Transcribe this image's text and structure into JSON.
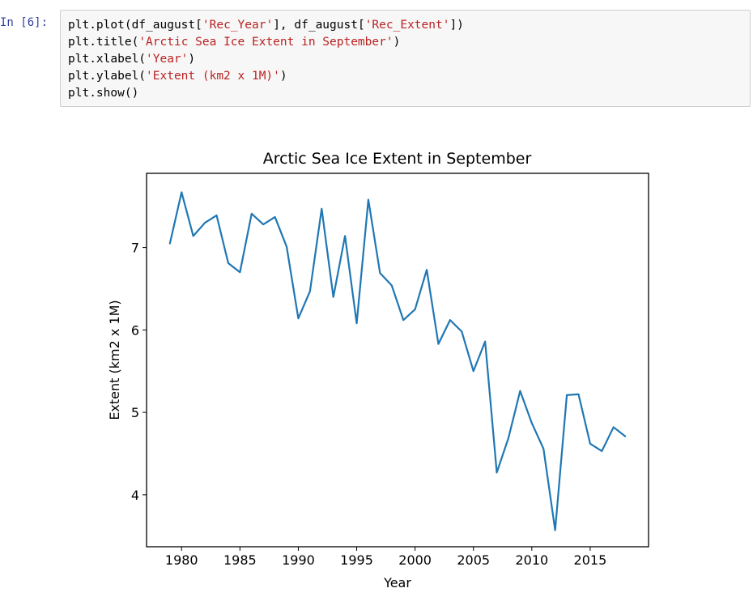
{
  "cell": {
    "prompt": "In [6]:",
    "lines": [
      [
        {
          "t": "plt.plot(df_august["
        },
        {
          "t": "'Rec_Year'",
          "s": 1
        },
        {
          "t": "], df_august["
        },
        {
          "t": "'Rec_Extent'",
          "s": 1
        },
        {
          "t": "])"
        }
      ],
      [
        {
          "t": "plt.title("
        },
        {
          "t": "'Arctic Sea Ice Extent in September'",
          "s": 1
        },
        {
          "t": ")"
        }
      ],
      [
        {
          "t": "plt.xlabel("
        },
        {
          "t": "'Year'",
          "s": 1
        },
        {
          "t": ")"
        }
      ],
      [
        {
          "t": "plt.ylabel("
        },
        {
          "t": "'Extent (km2 x 1M)'",
          "s": 1
        },
        {
          "t": ")"
        }
      ],
      [
        {
          "t": "plt.show()"
        }
      ]
    ]
  },
  "colors": {
    "line": "#1f77b4",
    "string": "#ba2121",
    "prompt": "#303f9f"
  },
  "chart_data": {
    "type": "line",
    "title": "Arctic Sea Ice Extent in September",
    "xlabel": "Year",
    "ylabel": "Extent (km2 x 1M)",
    "xlim": [
      1977.0,
      2020.0
    ],
    "ylim": [
      3.37,
      7.9
    ],
    "xticks": [
      1980,
      1985,
      1990,
      1995,
      2000,
      2005,
      2010,
      2015
    ],
    "yticks": [
      4,
      5,
      6,
      7
    ],
    "grid": false,
    "series": [
      {
        "x": [
          1979,
          1980,
          1981,
          1982,
          1983,
          1984,
          1985,
          1986,
          1987,
          1988,
          1989,
          1990,
          1991,
          1992,
          1993,
          1994,
          1995,
          1996,
          1997,
          1998,
          1999,
          2000,
          2001,
          2002,
          2003,
          2004,
          2005,
          2006,
          2007,
          2008,
          2009,
          2010,
          2011,
          2012,
          2013,
          2014,
          2015,
          2016,
          2017,
          2018
        ],
        "values": [
          7.05,
          7.67,
          7.14,
          7.3,
          7.39,
          6.81,
          6.7,
          7.41,
          7.28,
          7.37,
          7.01,
          6.14,
          6.47,
          7.47,
          6.4,
          7.14,
          6.08,
          7.58,
          6.69,
          6.54,
          6.12,
          6.25,
          6.73,
          5.83,
          6.12,
          5.98,
          5.5,
          5.86,
          4.27,
          4.69,
          5.26,
          4.87,
          4.56,
          3.57,
          5.21,
          5.22,
          4.62,
          4.53,
          4.82,
          4.71
        ]
      }
    ]
  }
}
